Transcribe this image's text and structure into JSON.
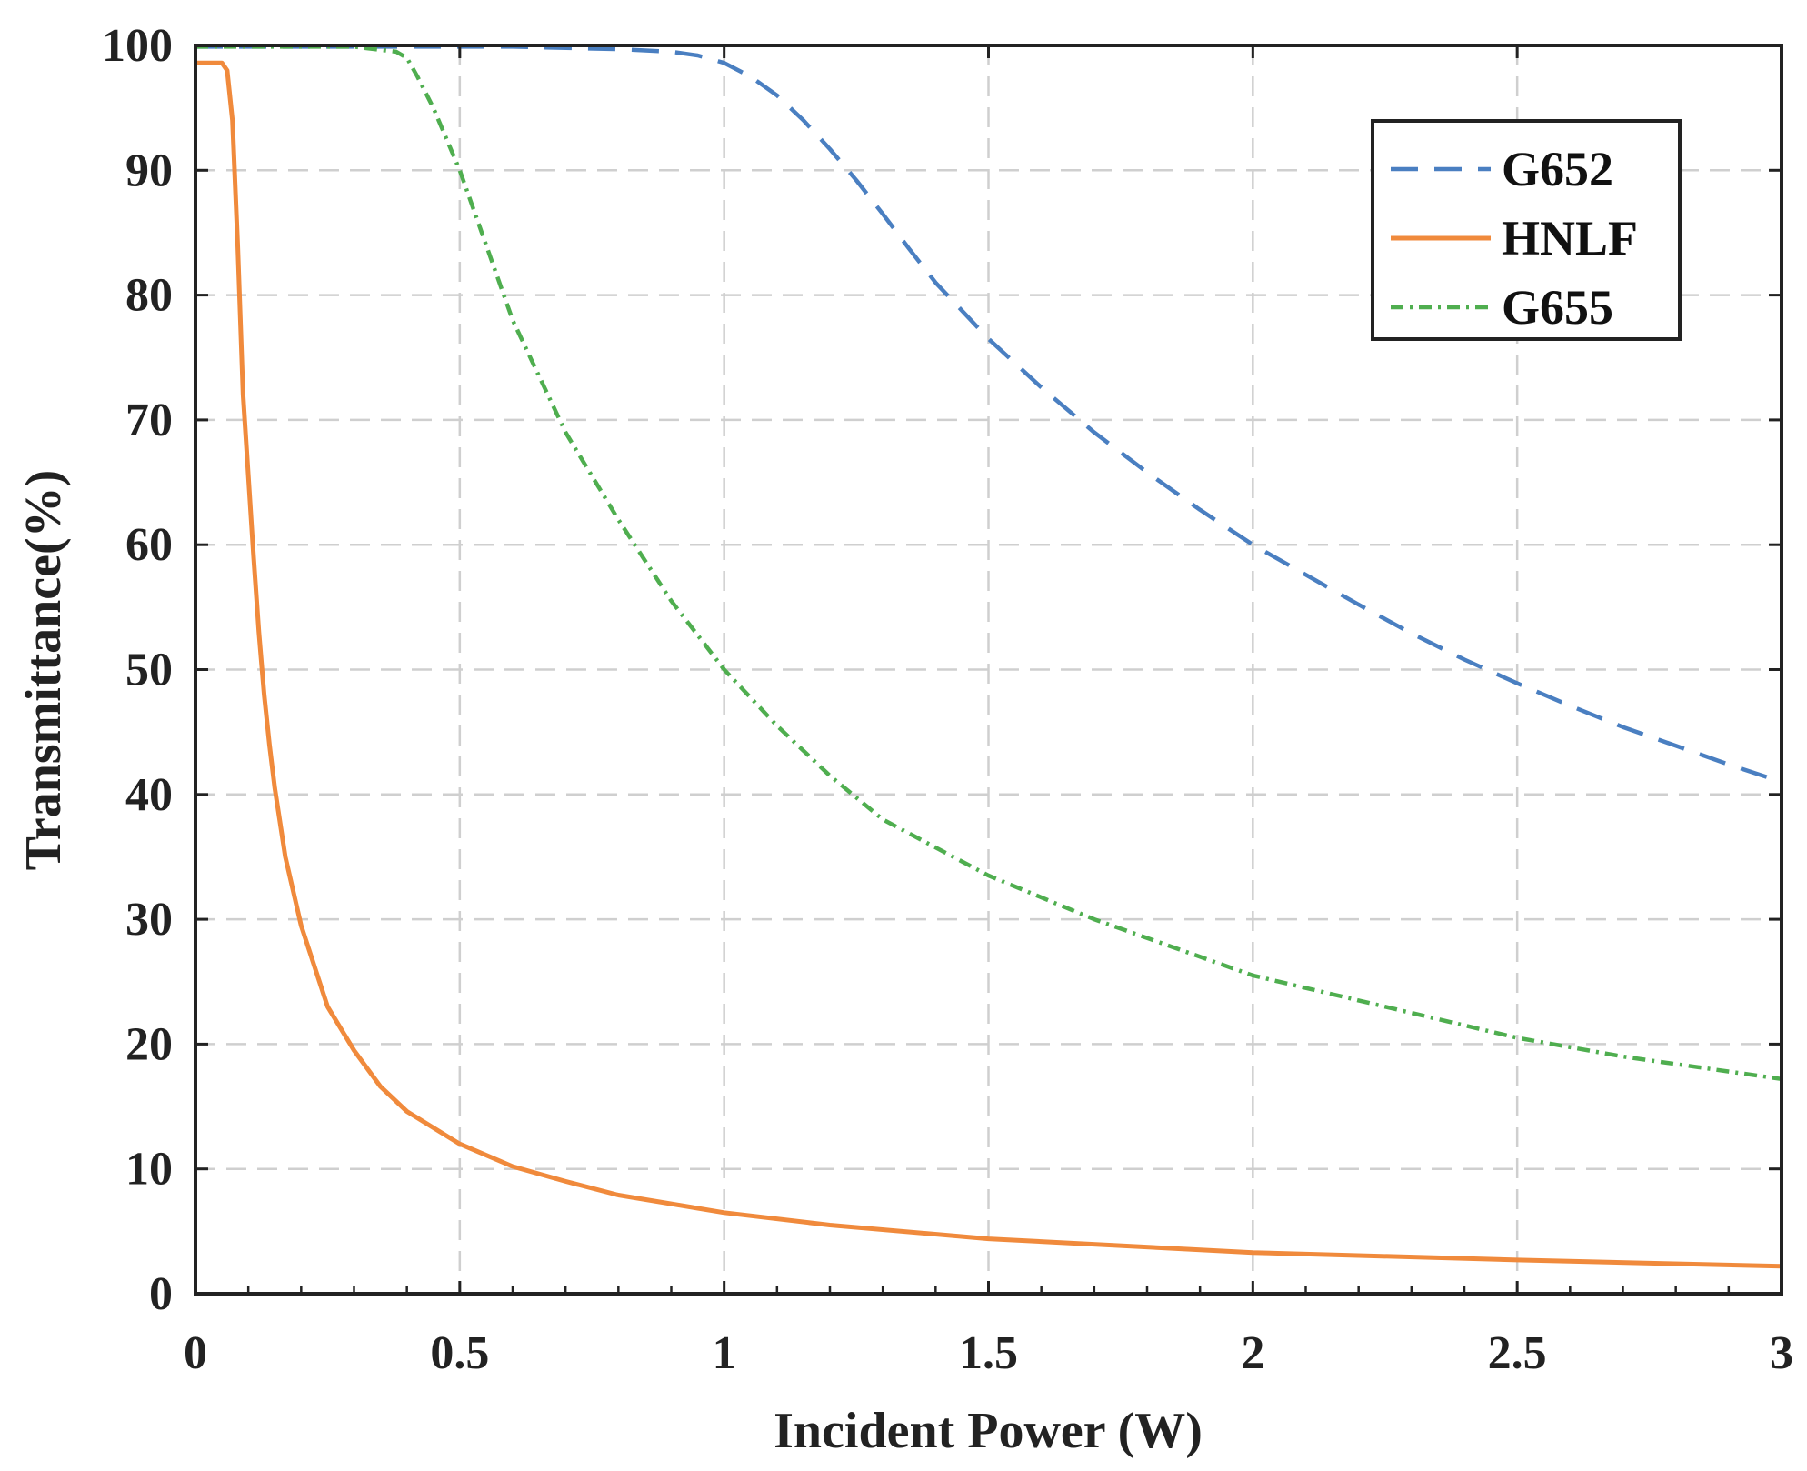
{
  "chart_data": {
    "type": "line",
    "xlabel": "Incident Power (W)",
    "ylabel": "Transmittance(%)",
    "xlim": [
      0,
      3
    ],
    "ylim": [
      0,
      100
    ],
    "xticks": [
      0,
      0.5,
      1,
      1.5,
      2,
      2.5,
      3
    ],
    "xtick_labels": [
      "0",
      "0.5",
      "1",
      "1.5",
      "2",
      "2.5",
      "3"
    ],
    "yticks": [
      0,
      10,
      20,
      30,
      40,
      50,
      60,
      70,
      80,
      90,
      100
    ],
    "ytick_labels": [
      "0",
      "10",
      "20",
      "30",
      "40",
      "50",
      "60",
      "70",
      "80",
      "90",
      "100"
    ],
    "grid": true,
    "legend_position": "top-right",
    "series": [
      {
        "name": "G652",
        "color": "#4a7fc1",
        "style": "dashed",
        "x": [
          0,
          0.2,
          0.4,
          0.6,
          0.8,
          0.9,
          0.95,
          1.0,
          1.05,
          1.1,
          1.15,
          1.2,
          1.25,
          1.3,
          1.35,
          1.4,
          1.5,
          1.6,
          1.7,
          1.8,
          1.9,
          2.0,
          2.1,
          2.2,
          2.3,
          2.4,
          2.5,
          2.6,
          2.7,
          2.8,
          2.9,
          3.0
        ],
        "y": [
          99.9,
          99.9,
          99.9,
          99.9,
          99.7,
          99.5,
          99.2,
          98.6,
          97.5,
          96.0,
          94.0,
          91.7,
          89.2,
          86.5,
          83.7,
          81.0,
          76.5,
          72.6,
          69.0,
          65.8,
          62.8,
          60.0,
          57.6,
          55.2,
          52.9,
          50.8,
          48.9,
          47.1,
          45.4,
          43.9,
          42.4,
          41.0
        ]
      },
      {
        "name": "HNLF",
        "color": "#f08a3c",
        "style": "solid",
        "x": [
          0,
          0.05,
          0.06,
          0.07,
          0.08,
          0.09,
          0.1,
          0.11,
          0.12,
          0.13,
          0.14,
          0.15,
          0.17,
          0.2,
          0.25,
          0.3,
          0.35,
          0.4,
          0.5,
          0.6,
          0.7,
          0.8,
          1.0,
          1.2,
          1.5,
          2.0,
          2.5,
          3.0
        ],
        "y": [
          98.6,
          98.6,
          98.0,
          94.0,
          84.0,
          72.0,
          65.5,
          59.0,
          53.0,
          48.0,
          44.0,
          40.5,
          35.0,
          29.5,
          23.0,
          19.5,
          16.6,
          14.6,
          12.0,
          10.2,
          9.0,
          7.9,
          6.5,
          5.5,
          4.4,
          3.3,
          2.7,
          2.2
        ]
      },
      {
        "name": "G655",
        "color": "#4fae4f",
        "style": "dash-dot",
        "x": [
          0,
          0.3,
          0.38,
          0.4,
          0.42,
          0.45,
          0.5,
          0.55,
          0.6,
          0.7,
          0.8,
          0.9,
          1.0,
          1.1,
          1.2,
          1.3,
          1.5,
          1.7,
          2.0,
          2.3,
          2.5,
          2.7,
          3.0
        ],
        "y": [
          99.9,
          99.9,
          99.5,
          99.0,
          97.5,
          95.0,
          90.0,
          84.0,
          78.0,
          69.0,
          62.0,
          55.5,
          50.0,
          45.5,
          41.5,
          38.0,
          33.5,
          30.0,
          25.5,
          22.5,
          20.5,
          19.0,
          17.2
        ]
      }
    ]
  }
}
